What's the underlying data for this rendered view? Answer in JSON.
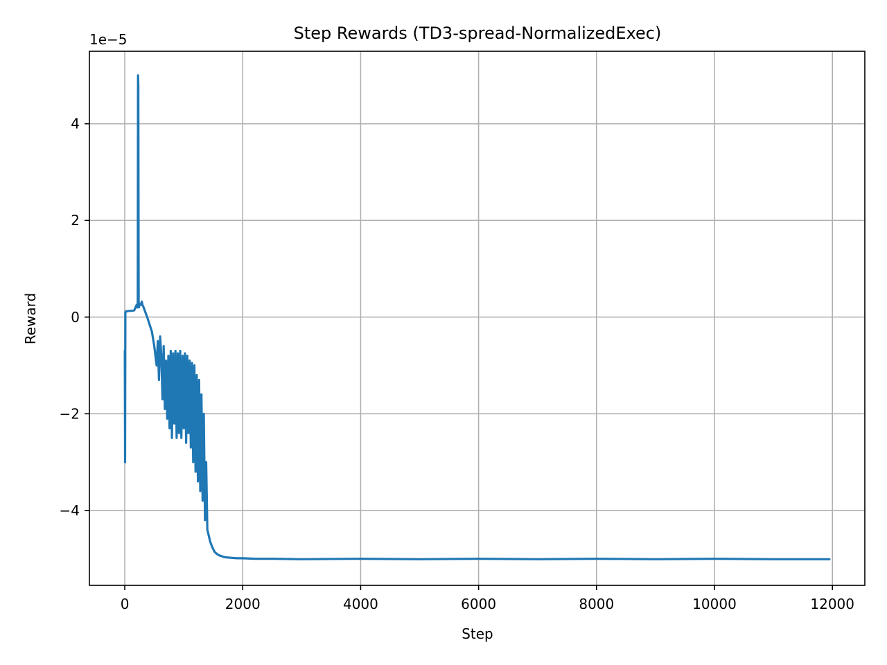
{
  "chart_data": {
    "type": "line",
    "title": "Step Rewards (TD3-spread-NormalizedExec)",
    "xlabel": "Step",
    "ylabel": "Reward",
    "y_offset_text": "1e−5",
    "y_scale_exponent": -5,
    "xlim": [
      -600,
      12550
    ],
    "ylim": [
      -5.55,
      5.5
    ],
    "x_ticks": [
      0,
      2000,
      4000,
      6000,
      8000,
      10000,
      12000
    ],
    "x_tick_labels": [
      "0",
      "2000",
      "4000",
      "6000",
      "8000",
      "10000",
      "12000"
    ],
    "y_ticks": [
      -4,
      -2,
      0,
      2,
      4
    ],
    "y_tick_labels": [
      "−4",
      "−2",
      "0",
      "2",
      "4"
    ],
    "grid": true,
    "legend": "none",
    "series": [
      {
        "color": "#1f77b4",
        "x": [
          0,
          5,
          10,
          15,
          20,
          40,
          80,
          120,
          160,
          200,
          210,
          220,
          225,
          230,
          235,
          240,
          250,
          270,
          290,
          300,
          320,
          350,
          380,
          420,
          460,
          500,
          540,
          560,
          580,
          600,
          620,
          640,
          660,
          680,
          700,
          720,
          740,
          760,
          780,
          800,
          820,
          840,
          860,
          880,
          900,
          920,
          940,
          960,
          980,
          1000,
          1020,
          1040,
          1060,
          1080,
          1100,
          1120,
          1140,
          1160,
          1180,
          1200,
          1220,
          1240,
          1260,
          1280,
          1300,
          1320,
          1340,
          1360,
          1380,
          1400,
          1420,
          1450,
          1480,
          1520,
          1560,
          1600,
          1650,
          1700,
          1800,
          1900,
          2000,
          2200,
          2500,
          3000,
          4000,
          5000,
          6000,
          7000,
          8000,
          9000,
          10000,
          11000,
          11950
        ],
        "y": [
          -0.7,
          -3.0,
          0.1,
          0.1,
          0.12,
          0.12,
          0.13,
          0.13,
          0.14,
          0.25,
          0.2,
          0.3,
          5.0,
          4.8,
          0.3,
          0.2,
          0.28,
          0.25,
          0.32,
          0.25,
          0.2,
          0.1,
          0.0,
          -0.15,
          -0.3,
          -0.6,
          -1.0,
          -0.5,
          -1.3,
          -0.4,
          -0.8,
          -1.7,
          -0.6,
          -1.9,
          -0.9,
          -2.1,
          -0.8,
          -2.3,
          -0.7,
          -2.5,
          -0.75,
          -2.2,
          -0.7,
          -2.5,
          -0.75,
          -2.4,
          -0.7,
          -2.5,
          -0.8,
          -2.3,
          -0.75,
          -2.6,
          -0.8,
          -2.4,
          -0.9,
          -2.7,
          -0.95,
          -3.0,
          -1.0,
          -3.2,
          -1.2,
          -3.4,
          -1.3,
          -3.6,
          -1.6,
          -3.8,
          -2.0,
          -4.2,
          -3.0,
          -4.4,
          -4.5,
          -4.65,
          -4.75,
          -4.85,
          -4.9,
          -4.93,
          -4.95,
          -4.97,
          -4.98,
          -4.99,
          -4.99,
          -5.0,
          -5.0,
          -5.01,
          -5.0,
          -5.01,
          -5.0,
          -5.01,
          -5.0,
          -5.01,
          -5.0,
          -5.01,
          -5.01
        ]
      }
    ]
  }
}
